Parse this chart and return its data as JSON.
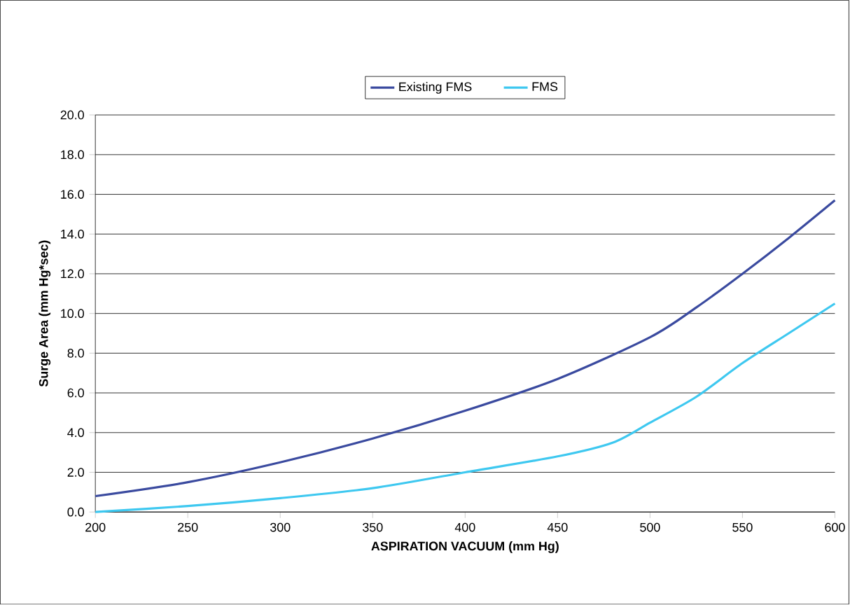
{
  "chart_data": {
    "type": "line",
    "xlabel": "ASPIRATION VACUUM (mm Hg)",
    "ylabel": "Surge Area (mm Hg*sec)",
    "xlim": [
      200,
      600
    ],
    "ylim": [
      0,
      20
    ],
    "xticks": [
      200,
      250,
      300,
      350,
      400,
      450,
      500,
      550,
      600
    ],
    "yticks": [
      {
        "value": 0,
        "label": "0.0"
      },
      {
        "value": 2,
        "label": "2.0"
      },
      {
        "value": 4,
        "label": "4.0"
      },
      {
        "value": 6,
        "label": "6.0"
      },
      {
        "value": 8,
        "label": "8.0"
      },
      {
        "value": 10,
        "label": "10.0"
      },
      {
        "value": 12,
        "label": "12.0"
      },
      {
        "value": 14,
        "label": "14.0"
      },
      {
        "value": 16,
        "label": "16.0"
      },
      {
        "value": 18,
        "label": "18.0"
      },
      {
        "value": 20,
        "label": "20.0"
      }
    ],
    "grid": "y",
    "legend": "top",
    "marker": "none",
    "series": [
      {
        "name": "Existing FMS",
        "color": "#3a4a9f",
        "x": [
          200,
          250,
          300,
          350,
          400,
          450,
          500,
          525,
          550,
          575,
          600
        ],
        "values": [
          0.8,
          1.5,
          2.5,
          3.7,
          5.1,
          6.7,
          8.8,
          10.3,
          12.0,
          13.8,
          15.7
        ]
      },
      {
        "name": "FMS",
        "color": "#3ec8f0",
        "x": [
          200,
          250,
          300,
          350,
          400,
          450,
          480,
          500,
          525,
          550,
          575,
          600
        ],
        "values": [
          0.0,
          0.3,
          0.7,
          1.2,
          2.0,
          2.8,
          3.5,
          4.5,
          5.8,
          7.5,
          9.0,
          10.5
        ]
      }
    ]
  }
}
